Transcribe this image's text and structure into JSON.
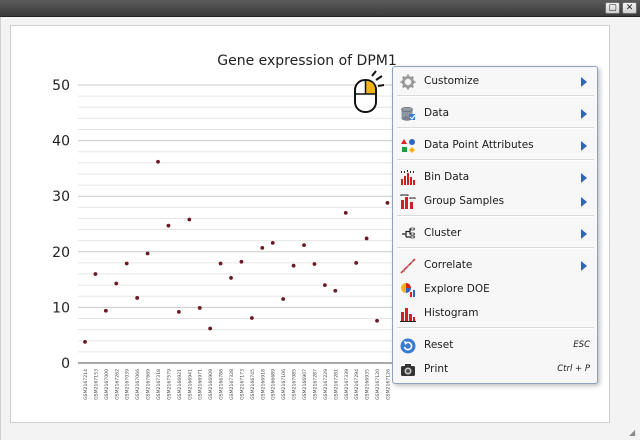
{
  "window": {
    "buttons": [
      {
        "name": "restore-window-button",
        "glyph": "▢"
      },
      {
        "name": "close-window-button",
        "glyph": "✕"
      }
    ]
  },
  "chart_data": {
    "type": "scatter",
    "title": "Gene expression of DPM1",
    "xlabel": "",
    "ylabel": "",
    "ylim": [
      0,
      50
    ],
    "yticks": [
      0,
      10,
      20,
      30,
      40,
      50
    ],
    "grid": true,
    "point_color": "#6b1a24",
    "categories": [
      "GSM2167214",
      "GSM2167153",
      "GSM2167000",
      "GSM2167262",
      "GSM2167039",
      "GSM2167066",
      "GSM2167669",
      "GSM2167318",
      "GSM2167579",
      "GSM2166921",
      "GSM2166941",
      "GSM2166971",
      "GSM2166909",
      "GSM2166786",
      "GSM2167328",
      "GSM2167173",
      "GSM2166745",
      "GSM2166918",
      "GSM2166689",
      "GSM2167106",
      "GSM2167085",
      "GSM2166907",
      "GSM2167287",
      "GSM2167229",
      "GSM2167281",
      "GSM2167339",
      "GSM2167294",
      "GSM2166935",
      "GSM2167120",
      "GSM2167126"
    ],
    "values": [
      3.8,
      16.0,
      9.4,
      14.3,
      17.9,
      11.7,
      19.7,
      36.2,
      24.7,
      9.2,
      25.8,
      9.9,
      6.2,
      17.9,
      15.3,
      18.2,
      8.1,
      20.7,
      21.6,
      11.5,
      17.5,
      21.2,
      17.8,
      14.0,
      13.0,
      27.0,
      18.0,
      22.4,
      7.6,
      28.8
    ]
  },
  "context_menu": {
    "items": [
      {
        "id": "customize",
        "label": "Customize",
        "icon": "gear-icon",
        "submenu": true
      },
      {
        "id": "data",
        "label": "Data",
        "icon": "database-icon",
        "submenu": true
      },
      {
        "id": "data-point-attributes",
        "label": "Data Point Attributes",
        "icon": "shapes-icon",
        "submenu": true
      },
      {
        "id": "bin-data",
        "label": "Bin Data",
        "icon": "bin-data-icon",
        "submenu": true
      },
      {
        "id": "group-samples",
        "label": "Group Samples",
        "icon": "group-samples-icon",
        "submenu": true
      },
      {
        "id": "cluster",
        "label": "Cluster",
        "icon": "cluster-tree-icon",
        "submenu": true
      },
      {
        "id": "correlate",
        "label": "Correlate",
        "icon": "correlate-line-icon",
        "submenu": true
      },
      {
        "id": "explore-doe",
        "label": "Explore DOE",
        "icon": "pie-bars-icon",
        "submenu": false
      },
      {
        "id": "histogram",
        "label": "Histogram",
        "icon": "histogram-icon",
        "submenu": false
      },
      {
        "id": "reset",
        "label": "Reset",
        "icon": "refresh-icon",
        "submenu": false,
        "shortcut": "ESC"
      },
      {
        "id": "print",
        "label": "Print",
        "icon": "camera-icon",
        "submenu": false,
        "shortcut": "Ctrl + P"
      }
    ]
  }
}
